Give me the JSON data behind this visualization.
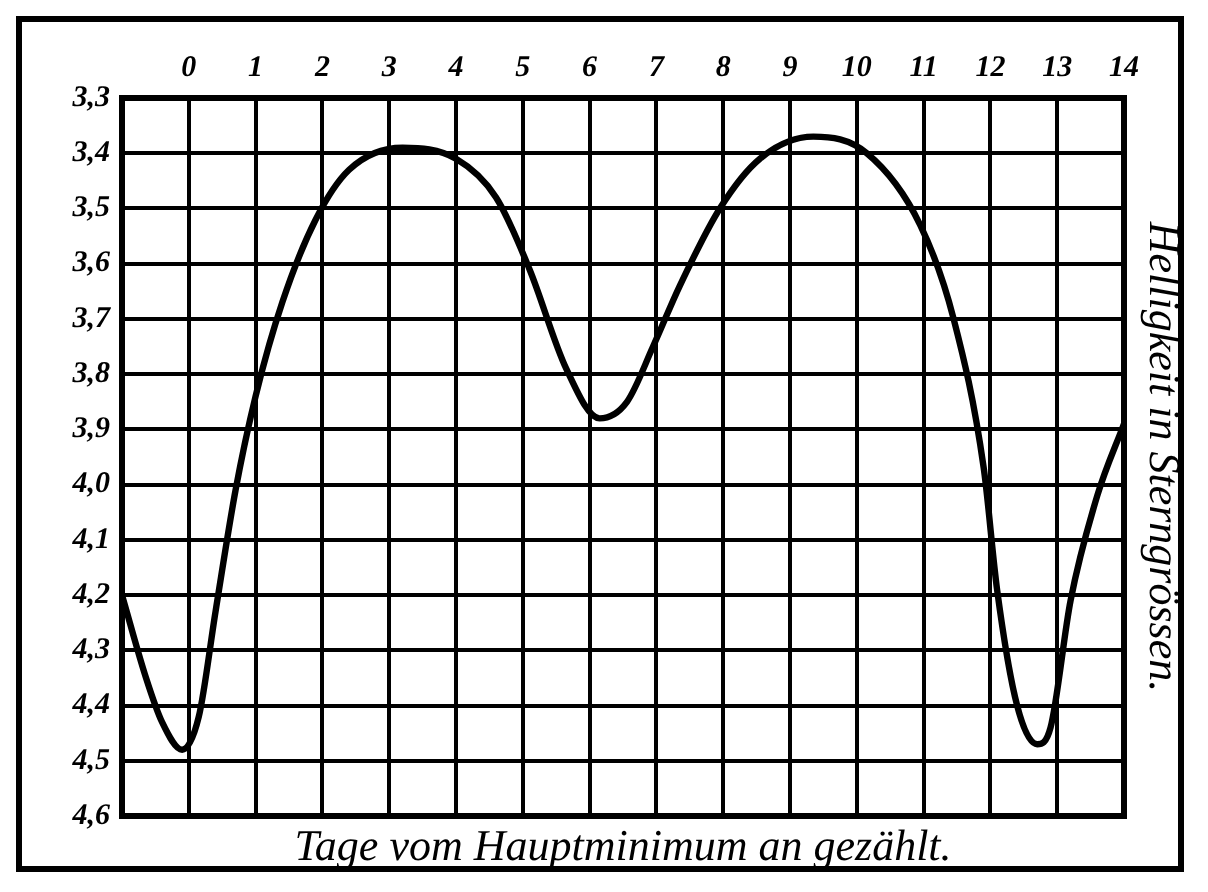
{
  "chart_data": {
    "type": "line",
    "xlabel": "Tage vom Hauptminimum an gezählt.",
    "ylabel": "Helligkeit in Sterngrössen.",
    "x": [
      -1,
      -0.64,
      -0.4,
      -0.1,
      0.15,
      0.4,
      0.7,
      1.0,
      1.4,
      1.9,
      2.4,
      3.2,
      4.0,
      4.6,
      5.1,
      5.65,
      6.15,
      6.56,
      6.95,
      7.35,
      7.95,
      8.55,
      9.35,
      10.15,
      10.95,
      11.45,
      11.9,
      12.1,
      12.4,
      12.7,
      12.9,
      13.2,
      13.6,
      14
    ],
    "series": [
      {
        "color": "#000000",
        "values": [
          4.2,
          4.35,
          4.43,
          4.48,
          4.42,
          4.23,
          4.01,
          3.84,
          3.67,
          3.52,
          3.43,
          3.39,
          3.41,
          3.48,
          3.61,
          3.79,
          3.88,
          3.85,
          3.75,
          3.64,
          3.5,
          3.41,
          3.37,
          3.4,
          3.53,
          3.7,
          3.97,
          4.19,
          4.4,
          4.47,
          4.44,
          4.21,
          4.02,
          3.89
        ]
      }
    ],
    "xlim": [
      -1,
      14
    ],
    "xticks": [
      0,
      1,
      2,
      3,
      4,
      5,
      6,
      7,
      8,
      9,
      10,
      11,
      12,
      13,
      14
    ],
    "ylim": [
      4.6,
      3.3
    ],
    "yticks": [
      {
        "value": 3.3,
        "label": "3,3"
      },
      {
        "value": 3.4,
        "label": "3,4"
      },
      {
        "value": 3.5,
        "label": "3,5"
      },
      {
        "value": 3.6,
        "label": "3,6"
      },
      {
        "value": 3.7,
        "label": "3,7"
      },
      {
        "value": 3.8,
        "label": "3,8"
      },
      {
        "value": 3.9,
        "label": "3,9"
      },
      {
        "value": 4.0,
        "label": "4,0"
      },
      {
        "value": 4.1,
        "label": "4,1"
      },
      {
        "value": 4.2,
        "label": "4,2"
      },
      {
        "value": 4.3,
        "label": "4,3"
      },
      {
        "value": 4.4,
        "label": "4,4"
      },
      {
        "value": 4.5,
        "label": "4,5"
      },
      {
        "value": 4.6,
        "label": "4,6"
      }
    ],
    "grid": true,
    "legend": false,
    "marker": "none",
    "line_style": "solid"
  }
}
